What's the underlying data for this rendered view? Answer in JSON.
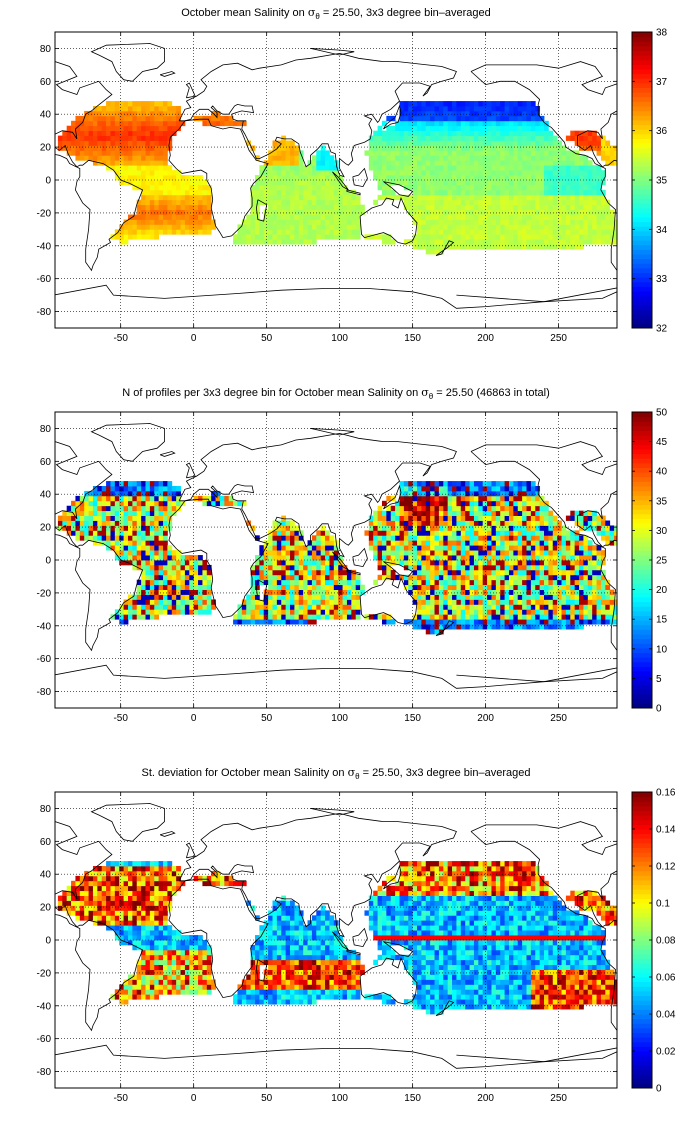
{
  "colormap": "jet",
  "ocean_gradient": "#0a7fd8",
  "chart_data": [
    {
      "type": "heatmap",
      "title_parts": [
        "October mean Salinity on ",
        "σ",
        "θ",
        " = 25.50, 3x3 degree bin–averaged"
      ],
      "xlabel": "",
      "ylabel": "",
      "xlim": [
        -95,
        290
      ],
      "ylim": [
        -90,
        90
      ],
      "x_ticks": [
        -50,
        0,
        50,
        100,
        150,
        200,
        250
      ],
      "y_ticks": [
        -80,
        -60,
        -40,
        -20,
        0,
        20,
        40,
        60,
        80
      ],
      "grid": "dotted",
      "colorbar": {
        "range": [
          32,
          38
        ],
        "ticks": [
          32,
          33,
          34,
          35,
          36,
          37,
          38
        ]
      },
      "field": "salinity"
    },
    {
      "type": "heatmap",
      "title_parts": [
        "N of profiles per 3x3 degree bin for October mean Salinity on ",
        "σ",
        "θ",
        " = 25.50 (46863 in total)"
      ],
      "xlabel": "",
      "ylabel": "",
      "xlim": [
        -95,
        290
      ],
      "ylim": [
        -90,
        90
      ],
      "x_ticks": [
        -50,
        0,
        50,
        100,
        150,
        200,
        250
      ],
      "y_ticks": [
        -80,
        -60,
        -40,
        -20,
        0,
        20,
        40,
        60,
        80
      ],
      "grid": "dotted",
      "colorbar": {
        "range": [
          0,
          50
        ],
        "ticks": [
          0,
          5,
          10,
          15,
          20,
          25,
          30,
          35,
          40,
          45,
          50
        ]
      },
      "total_profiles": 46863,
      "field": "count"
    },
    {
      "type": "heatmap",
      "title_parts": [
        "St. deviation for October mean Salinity on ",
        "σ",
        "θ",
        " = 25.50, 3x3 degree bin–averaged"
      ],
      "xlabel": "",
      "ylabel": "",
      "xlim": [
        -95,
        290
      ],
      "ylim": [
        -90,
        90
      ],
      "x_ticks": [
        -50,
        0,
        50,
        100,
        150,
        200,
        250
      ],
      "y_ticks": [
        -80,
        -60,
        -40,
        -20,
        0,
        20,
        40,
        60,
        80
      ],
      "grid": "dotted",
      "colorbar": {
        "range": [
          0,
          0.16
        ],
        "ticks": [
          0,
          0.02,
          0.04,
          0.06,
          0.08,
          0.1,
          0.12,
          0.14,
          0.16
        ]
      },
      "field": "stdev"
    }
  ]
}
